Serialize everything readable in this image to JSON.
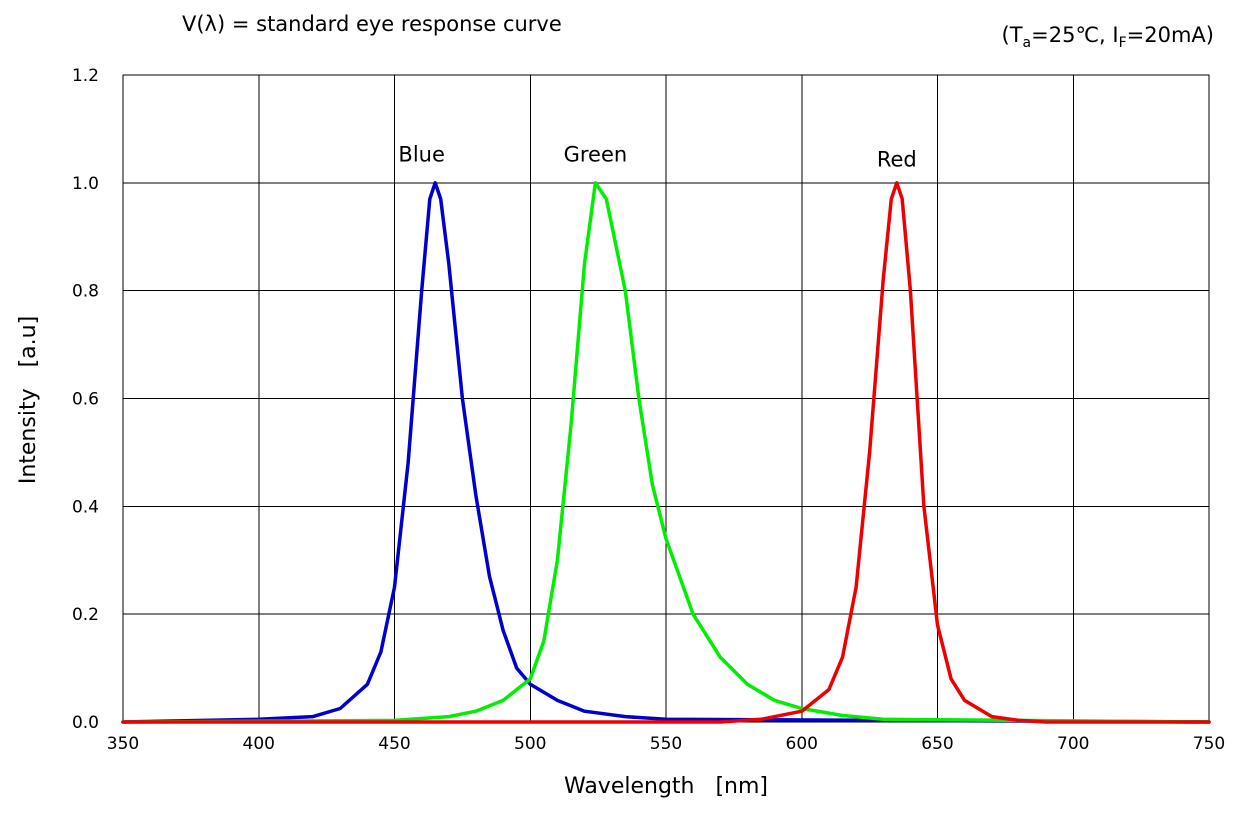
{
  "header": {
    "note_prefix": "V(λ) = standard eye response curve",
    "conditions": "(Ta=25℃, IF=20mA)",
    "conditions_parts": {
      "open": "(T",
      "t_sub": "a",
      "t_rest": "=25℃, I",
      "i_sub": "F",
      "i_rest": "=20mA)"
    }
  },
  "chart_data": {
    "type": "line",
    "xlabel": "Wavelength   [nm]",
    "ylabel": "Intensity   [a.u]",
    "xlim": [
      350,
      750
    ],
    "ylim": [
      0,
      1.2
    ],
    "x_ticks": [
      "350",
      "400",
      "450",
      "500",
      "550",
      "600",
      "650",
      "700",
      "750"
    ],
    "y_ticks": [
      "0.0",
      "0.2",
      "0.4",
      "0.6",
      "0.8",
      "1.0",
      "1.2"
    ],
    "grid": true,
    "series": [
      {
        "name": "Blue",
        "color": "#0000cc",
        "points": [
          [
            350,
            0
          ],
          [
            400,
            0.005
          ],
          [
            420,
            0.01
          ],
          [
            430,
            0.025
          ],
          [
            440,
            0.07
          ],
          [
            445,
            0.13
          ],
          [
            450,
            0.25
          ],
          [
            455,
            0.48
          ],
          [
            460,
            0.8
          ],
          [
            463,
            0.97
          ],
          [
            465,
            1.0
          ],
          [
            467,
            0.97
          ],
          [
            470,
            0.85
          ],
          [
            475,
            0.6
          ],
          [
            480,
            0.42
          ],
          [
            485,
            0.27
          ],
          [
            490,
            0.17
          ],
          [
            495,
            0.1
          ],
          [
            500,
            0.07
          ],
          [
            510,
            0.04
          ],
          [
            520,
            0.02
          ],
          [
            535,
            0.01
          ],
          [
            550,
            0.005
          ],
          [
            750,
            0
          ]
        ]
      },
      {
        "name": "Green",
        "color": "#00ee00",
        "points": [
          [
            350,
            0
          ],
          [
            450,
            0.003
          ],
          [
            470,
            0.01
          ],
          [
            480,
            0.02
          ],
          [
            490,
            0.04
          ],
          [
            500,
            0.08
          ],
          [
            505,
            0.15
          ],
          [
            510,
            0.3
          ],
          [
            515,
            0.55
          ],
          [
            520,
            0.85
          ],
          [
            524,
            1.0
          ],
          [
            528,
            0.97
          ],
          [
            535,
            0.8
          ],
          [
            540,
            0.6
          ],
          [
            545,
            0.44
          ],
          [
            550,
            0.34
          ],
          [
            560,
            0.2
          ],
          [
            570,
            0.12
          ],
          [
            580,
            0.07
          ],
          [
            590,
            0.04
          ],
          [
            600,
            0.025
          ],
          [
            615,
            0.012
          ],
          [
            630,
            0.005
          ],
          [
            750,
            0
          ]
        ]
      },
      {
        "name": "Red",
        "color": "#ee0000",
        "points": [
          [
            350,
            0
          ],
          [
            570,
            0
          ],
          [
            585,
            0.005
          ],
          [
            600,
            0.02
          ],
          [
            610,
            0.06
          ],
          [
            615,
            0.12
          ],
          [
            620,
            0.25
          ],
          [
            625,
            0.5
          ],
          [
            630,
            0.82
          ],
          [
            633,
            0.97
          ],
          [
            635,
            1.0
          ],
          [
            637,
            0.97
          ],
          [
            640,
            0.8
          ],
          [
            645,
            0.4
          ],
          [
            650,
            0.18
          ],
          [
            655,
            0.08
          ],
          [
            660,
            0.04
          ],
          [
            670,
            0.01
          ],
          [
            680,
            0.003
          ],
          [
            690,
            0
          ],
          [
            750,
            0
          ]
        ]
      }
    ],
    "series_labels": [
      {
        "name": "Blue",
        "x": 460,
        "y": 1.04
      },
      {
        "name": "Green",
        "x": 524,
        "y": 1.04
      },
      {
        "name": "Red",
        "x": 635,
        "y": 1.03
      }
    ]
  }
}
